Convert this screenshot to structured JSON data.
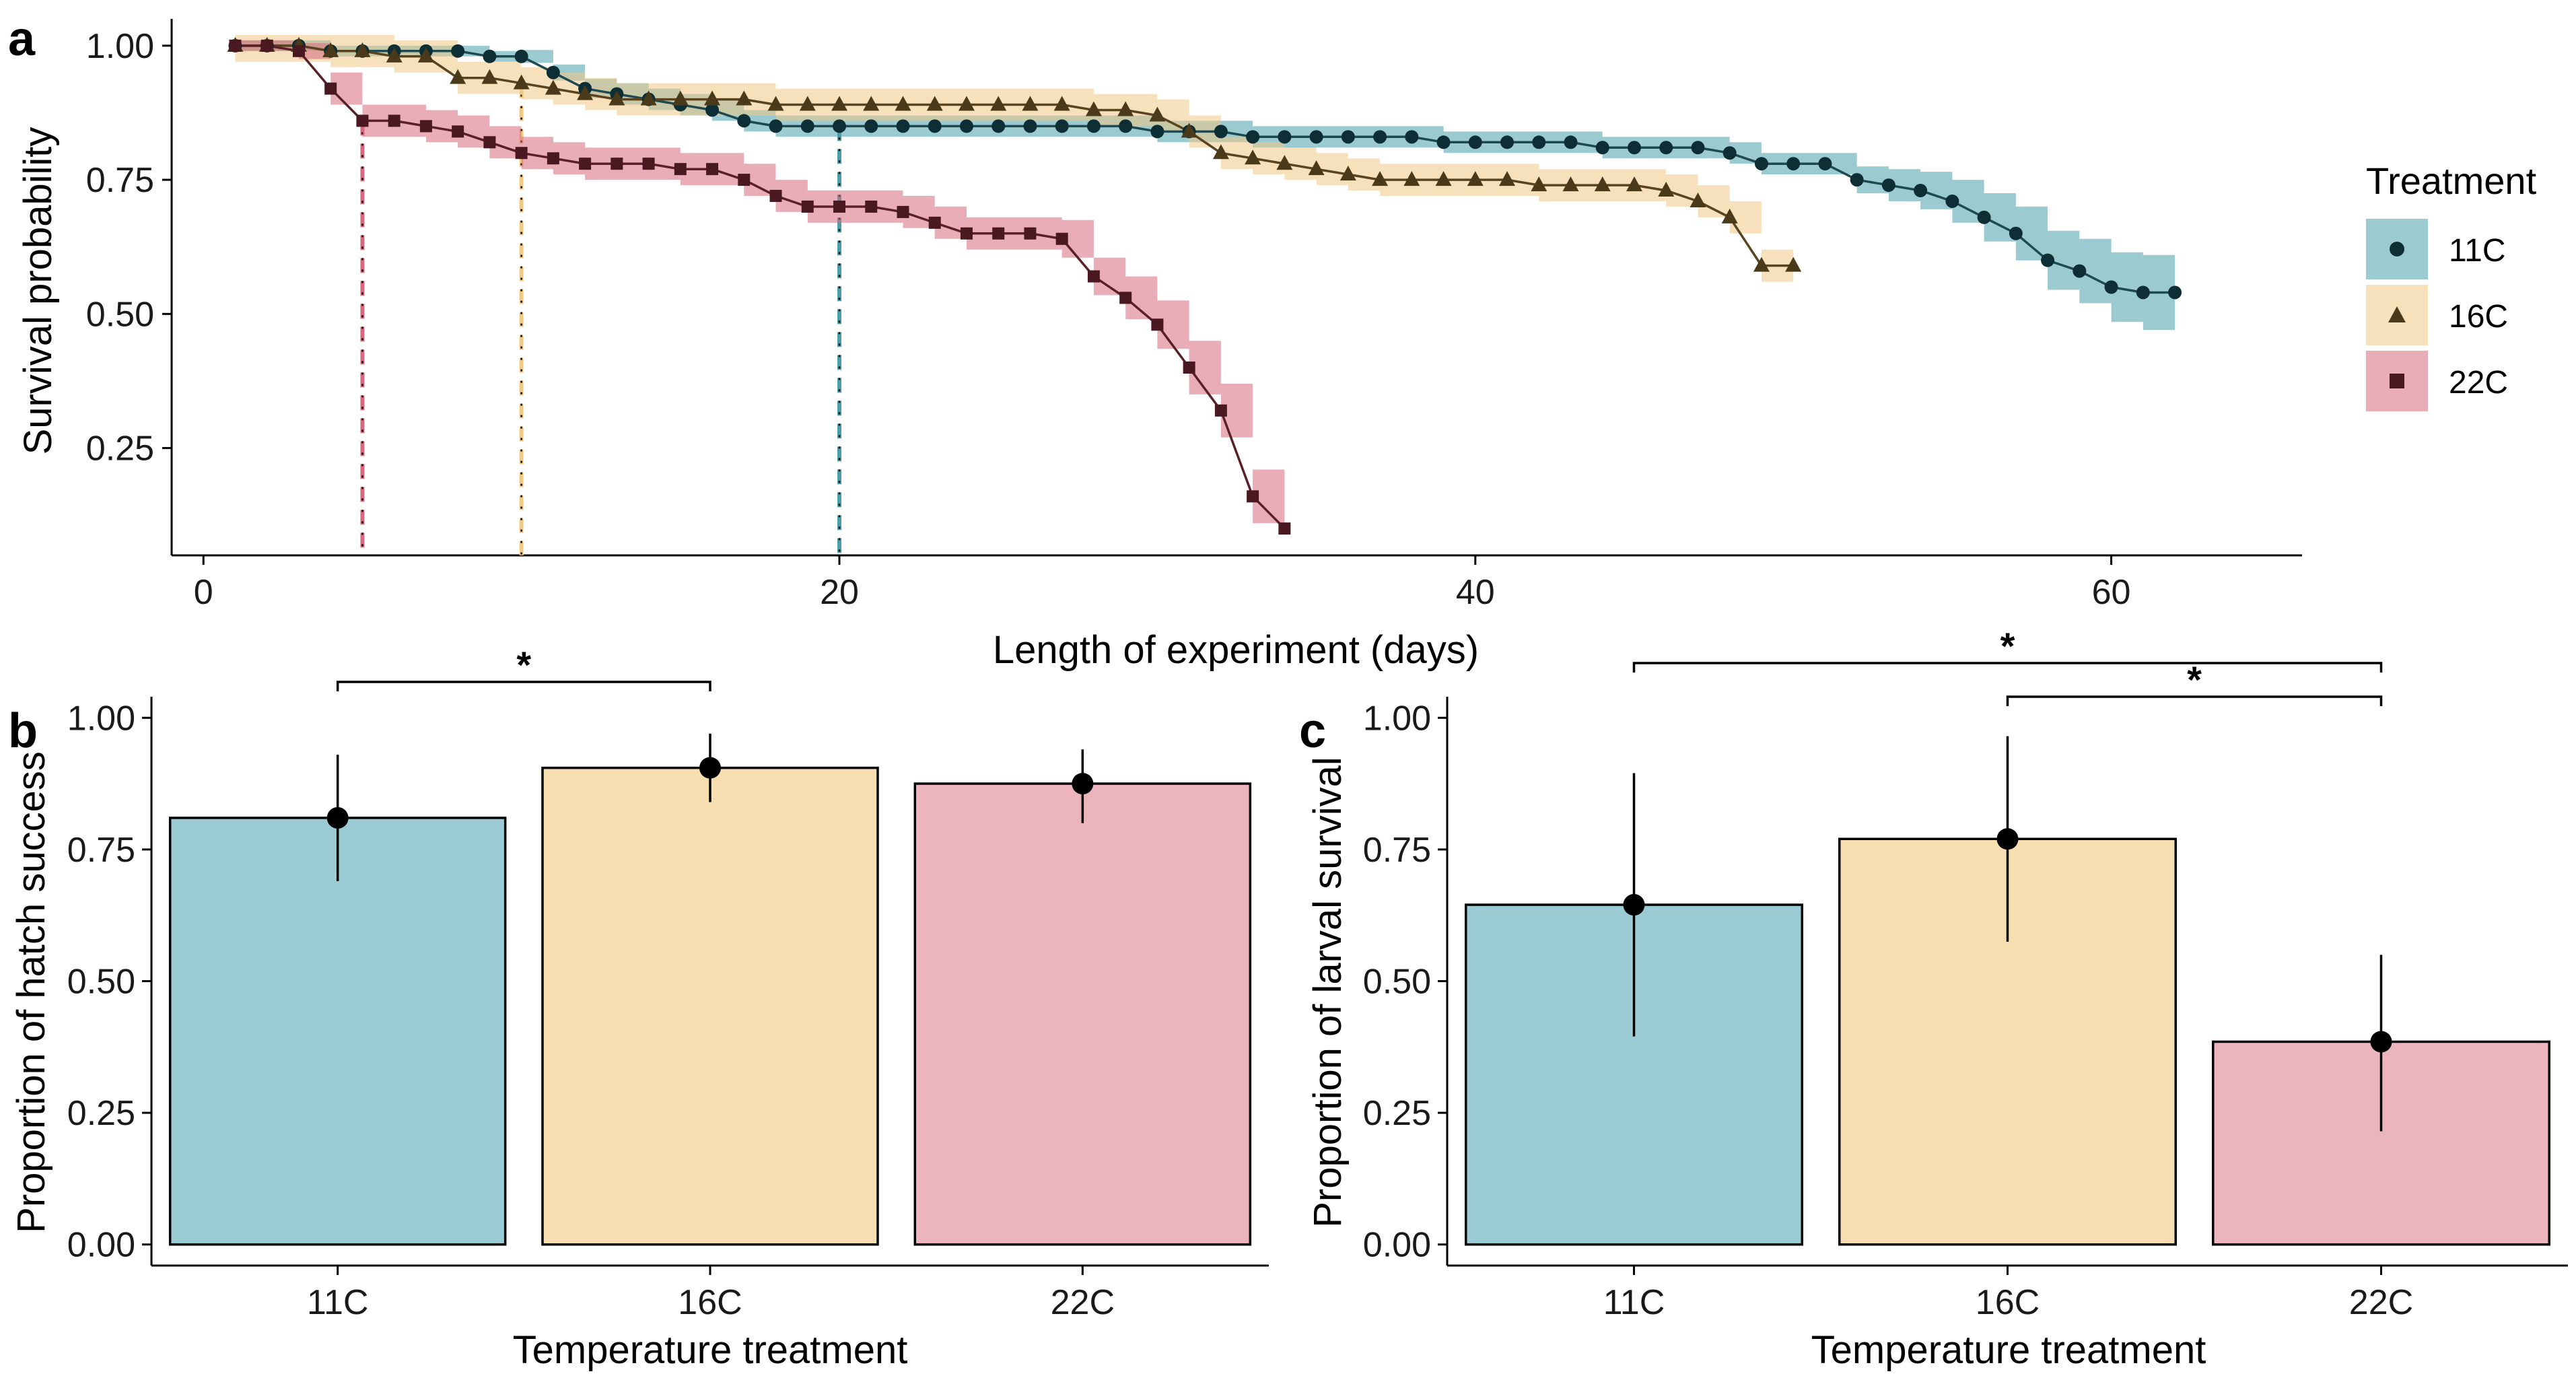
{
  "colors": {
    "c11": "#4a9eab",
    "c16": "#f0c985",
    "c22": "#d76a7e",
    "bar11": "#9bcbd3",
    "bar16": "#f7deb1",
    "bar22": "#ecb5bd",
    "line": "#000000"
  },
  "chart_data": [
    {
      "panel": "a",
      "type": "line",
      "xlabel": "Length of experiment (days)",
      "ylabel": "Survival probability",
      "xlim": [
        -1,
        66
      ],
      "ylim": [
        0.05,
        1.05
      ],
      "xticks": [
        0,
        20,
        40,
        60
      ],
      "yticks": [
        0.25,
        0.5,
        0.75,
        1.0
      ],
      "ytick_labels": [
        "0.25",
        "0.50",
        "0.75",
        "1.00"
      ],
      "legend": {
        "title": "Treatment",
        "position": "right"
      },
      "series": [
        {
          "name": "11C",
          "marker": "circle",
          "color_key": "c11",
          "ci_halfwidth": [
            0.01,
            0.01,
            0.01,
            0.01,
            0.01,
            0.01,
            0.01,
            0.01,
            0.01,
            0.012,
            0.015,
            0.018,
            0.02,
            0.02,
            0.02,
            0.02,
            0.02,
            0.02,
            0.02,
            0.02,
            0.02,
            0.02,
            0.02,
            0.02,
            0.02,
            0.02,
            0.02,
            0.02,
            0.02,
            0.02,
            0.02,
            0.02,
            0.02,
            0.02,
            0.02,
            0.02,
            0.02,
            0.02,
            0.02,
            0.02,
            0.02,
            0.02,
            0.02,
            0.02,
            0.02,
            0.02,
            0.02,
            0.02,
            0.02,
            0.02,
            0.02,
            0.025,
            0.03,
            0.035,
            0.04,
            0.045,
            0.05,
            0.055,
            0.06,
            0.065,
            0.07
          ],
          "points": [
            [
              1,
              1.0
            ],
            [
              2,
              1.0
            ],
            [
              3,
              1.0
            ],
            [
              4,
              0.99
            ],
            [
              5,
              0.99
            ],
            [
              6,
              0.99
            ],
            [
              7,
              0.99
            ],
            [
              8,
              0.99
            ],
            [
              9,
              0.98
            ],
            [
              10,
              0.98
            ],
            [
              11,
              0.95
            ],
            [
              12,
              0.92
            ],
            [
              13,
              0.91
            ],
            [
              14,
              0.9
            ],
            [
              15,
              0.89
            ],
            [
              16,
              0.88
            ],
            [
              17,
              0.86
            ],
            [
              18,
              0.85
            ],
            [
              19,
              0.85
            ],
            [
              20,
              0.85
            ],
            [
              21,
              0.85
            ],
            [
              22,
              0.85
            ],
            [
              23,
              0.85
            ],
            [
              24,
              0.85
            ],
            [
              25,
              0.85
            ],
            [
              26,
              0.85
            ],
            [
              27,
              0.85
            ],
            [
              28,
              0.85
            ],
            [
              29,
              0.85
            ],
            [
              30,
              0.84
            ],
            [
              31,
              0.84
            ],
            [
              32,
              0.84
            ],
            [
              33,
              0.83
            ],
            [
              34,
              0.83
            ],
            [
              35,
              0.83
            ],
            [
              36,
              0.83
            ],
            [
              37,
              0.83
            ],
            [
              38,
              0.83
            ],
            [
              39,
              0.82
            ],
            [
              40,
              0.82
            ],
            [
              41,
              0.82
            ],
            [
              42,
              0.82
            ],
            [
              43,
              0.82
            ],
            [
              44,
              0.81
            ],
            [
              45,
              0.81
            ],
            [
              46,
              0.81
            ],
            [
              47,
              0.81
            ],
            [
              48,
              0.8
            ],
            [
              49,
              0.78
            ],
            [
              50,
              0.78
            ],
            [
              51,
              0.78
            ],
            [
              52,
              0.75
            ],
            [
              53,
              0.74
            ],
            [
              54,
              0.73
            ],
            [
              55,
              0.71
            ],
            [
              56,
              0.68
            ],
            [
              57,
              0.65
            ],
            [
              58,
              0.6
            ],
            [
              59,
              0.58
            ],
            [
              60,
              0.55
            ],
            [
              61,
              0.54
            ],
            [
              62,
              0.54
            ]
          ]
        },
        {
          "name": "16C",
          "marker": "triangle",
          "color_key": "c16",
          "ci_halfwidth": 0.03,
          "points": [
            [
              1,
              1.0
            ],
            [
              2,
              1.0
            ],
            [
              3,
              1.0
            ],
            [
              4,
              0.99
            ],
            [
              5,
              0.99
            ],
            [
              6,
              0.98
            ],
            [
              7,
              0.98
            ],
            [
              8,
              0.94
            ],
            [
              9,
              0.94
            ],
            [
              10,
              0.93
            ],
            [
              11,
              0.92
            ],
            [
              12,
              0.91
            ],
            [
              13,
              0.9
            ],
            [
              14,
              0.9
            ],
            [
              15,
              0.9
            ],
            [
              16,
              0.9
            ],
            [
              17,
              0.9
            ],
            [
              18,
              0.89
            ],
            [
              19,
              0.89
            ],
            [
              20,
              0.89
            ],
            [
              21,
              0.89
            ],
            [
              22,
              0.89
            ],
            [
              23,
              0.89
            ],
            [
              24,
              0.89
            ],
            [
              25,
              0.89
            ],
            [
              26,
              0.89
            ],
            [
              27,
              0.89
            ],
            [
              28,
              0.88
            ],
            [
              29,
              0.88
            ],
            [
              30,
              0.87
            ],
            [
              31,
              0.84
            ],
            [
              32,
              0.8
            ],
            [
              33,
              0.79
            ],
            [
              34,
              0.78
            ],
            [
              35,
              0.77
            ],
            [
              36,
              0.76
            ],
            [
              37,
              0.75
            ],
            [
              38,
              0.75
            ],
            [
              39,
              0.75
            ],
            [
              40,
              0.75
            ],
            [
              41,
              0.75
            ],
            [
              42,
              0.74
            ],
            [
              43,
              0.74
            ],
            [
              44,
              0.74
            ],
            [
              45,
              0.74
            ],
            [
              46,
              0.73
            ],
            [
              47,
              0.71
            ],
            [
              48,
              0.68
            ],
            [
              49,
              0.59
            ],
            [
              50,
              0.59
            ]
          ]
        },
        {
          "name": "22C",
          "marker": "square",
          "color_key": "c22",
          "ci_halfwidth": [
            0.01,
            0.01,
            0.015,
            0.03,
            0.03,
            0.03,
            0.03,
            0.03,
            0.03,
            0.03,
            0.03,
            0.03,
            0.03,
            0.03,
            0.03,
            0.03,
            0.03,
            0.03,
            0.03,
            0.03,
            0.03,
            0.03,
            0.03,
            0.03,
            0.03,
            0.03,
            0.035,
            0.035,
            0.04,
            0.045,
            0.05,
            0.05,
            0.05,
            0.045
          ],
          "points": [
            [
              1,
              1.0
            ],
            [
              2,
              1.0
            ],
            [
              3,
              0.99
            ],
            [
              4,
              0.92
            ],
            [
              5,
              0.86
            ],
            [
              6,
              0.86
            ],
            [
              7,
              0.85
            ],
            [
              8,
              0.84
            ],
            [
              9,
              0.82
            ],
            [
              10,
              0.8
            ],
            [
              11,
              0.79
            ],
            [
              12,
              0.78
            ],
            [
              13,
              0.78
            ],
            [
              14,
              0.78
            ],
            [
              15,
              0.77
            ],
            [
              16,
              0.77
            ],
            [
              17,
              0.75
            ],
            [
              18,
              0.72
            ],
            [
              19,
              0.7
            ],
            [
              20,
              0.7
            ],
            [
              21,
              0.7
            ],
            [
              22,
              0.69
            ],
            [
              23,
              0.67
            ],
            [
              24,
              0.65
            ],
            [
              25,
              0.65
            ],
            [
              26,
              0.65
            ],
            [
              27,
              0.64
            ],
            [
              28,
              0.57
            ],
            [
              29,
              0.53
            ],
            [
              30,
              0.48
            ],
            [
              31,
              0.4
            ],
            [
              32,
              0.32
            ],
            [
              33,
              0.16
            ],
            [
              34,
              0.1
            ]
          ]
        }
      ],
      "median_lines": [
        {
          "series": "22C",
          "x": 5
        },
        {
          "series": "16C",
          "x": 10
        },
        {
          "series": "11C",
          "x": 20
        }
      ]
    },
    {
      "panel": "b",
      "type": "bar",
      "xlabel": "Temperature treatment",
      "ylabel": "Proportion of hatch success",
      "categories": [
        "11C",
        "16C",
        "22C"
      ],
      "values": [
        0.81,
        0.905,
        0.875
      ],
      "ci_low": [
        0.69,
        0.84,
        0.8
      ],
      "ci_high": [
        0.93,
        0.97,
        0.94
      ],
      "ylim": [
        -0.04,
        1.04
      ],
      "yticks": [
        0,
        0.25,
        0.5,
        0.75,
        1.0
      ],
      "ytick_labels": [
        "0.00",
        "0.25",
        "0.50",
        "0.75",
        "1.00"
      ],
      "significance": [
        {
          "from": "11C",
          "to": "16C",
          "label": "*"
        }
      ]
    },
    {
      "panel": "c",
      "type": "bar",
      "xlabel": "Temperature treatment",
      "ylabel": "Proportion of larval survival",
      "categories": [
        "11C",
        "16C",
        "22C"
      ],
      "values": [
        0.645,
        0.77,
        0.385
      ],
      "ci_low": [
        0.395,
        0.575,
        0.215
      ],
      "ci_high": [
        0.895,
        0.965,
        0.55
      ],
      "ylim": [
        -0.04,
        1.04
      ],
      "yticks": [
        0,
        0.25,
        0.5,
        0.75,
        1.0
      ],
      "ytick_labels": [
        "0.00",
        "0.25",
        "0.50",
        "0.75",
        "1.00"
      ],
      "significance": [
        {
          "from": "11C",
          "to": "22C",
          "label": "*"
        },
        {
          "from": "16C",
          "to": "22C",
          "label": "*"
        }
      ]
    }
  ]
}
